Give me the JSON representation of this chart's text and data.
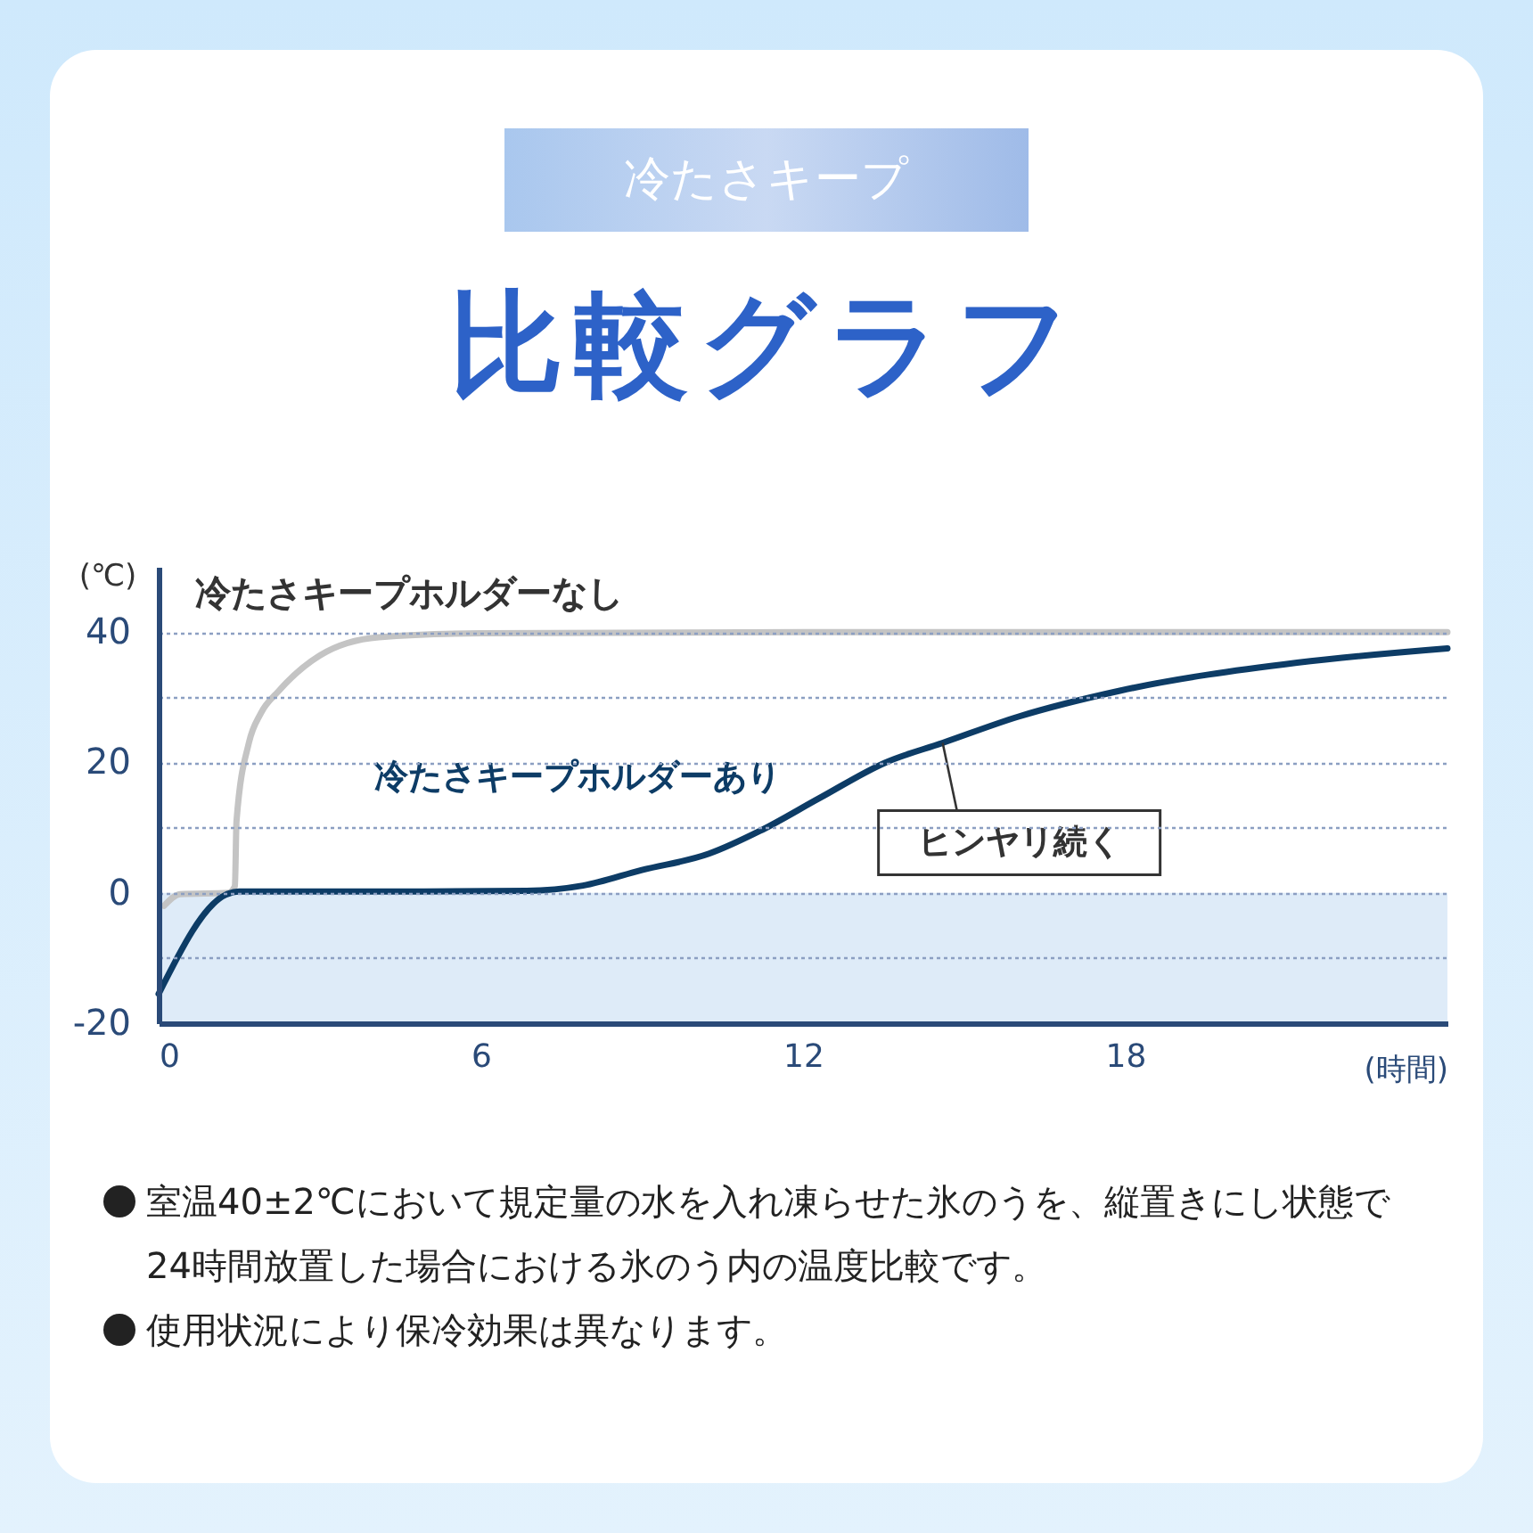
{
  "chart_data": {
    "type": "line",
    "title": "比較グラフ",
    "subtitle": "冷たさキープ",
    "xlabel": "(時間)",
    "ylabel": "(℃)",
    "xlim": [
      0,
      24
    ],
    "xticks": [
      0,
      6,
      12,
      18
    ],
    "ylim": [
      -20,
      50
    ],
    "yticks": [
      -20,
      {
        "value": -10,
        "label": null
      },
      0,
      {
        "value": 10,
        "label": null
      },
      20,
      {
        "value": 30,
        "label": null
      },
      40
    ],
    "grid": "y",
    "line_style": "solid",
    "marker": "none",
    "bands": [
      {
        "axis": "y",
        "from": -20,
        "to": 0,
        "color": "#deebf8"
      }
    ],
    "series": [
      {
        "name": "冷たさキープホルダーなし",
        "color": "#c4c4c4",
        "x": [
          0.1,
          0.4,
          1.3,
          1.42,
          1.45,
          1.68,
          1.9,
          2.24,
          3.0,
          4.1,
          6,
          12,
          24
        ],
        "values": [
          -2,
          -0.2,
          0,
          1,
          11,
          23,
          27.5,
          31,
          36.4,
          39.2,
          39.8,
          40,
          40
        ]
      },
      {
        "name": "冷たさキープホルダーあり",
        "color": "#0d3c66",
        "x": [
          0,
          1.25,
          1.5,
          4,
          6.85,
          7.9,
          9,
          10.25,
          11.2,
          12.3,
          13.54,
          14.6,
          16,
          17.9,
          21.2,
          24
        ],
        "values": [
          -15.5,
          -0.3,
          0.2,
          0.2,
          0.3,
          1.1,
          3.5,
          6,
          9.5,
          14.5,
          20,
          23,
          27,
          31,
          35.3,
          37.5
        ]
      }
    ],
    "annotations": [
      {
        "text": "ヒンヤリ続く",
        "x": 14.6,
        "y": 23
      },
      "室温40±2℃において規定量の水を入れ凍らせた氷のうを、縦置きにし状態で24時間放置した場合における氷のう内の温度比較です。",
      "使用状況により保冷効果は異なります。"
    ]
  }
}
